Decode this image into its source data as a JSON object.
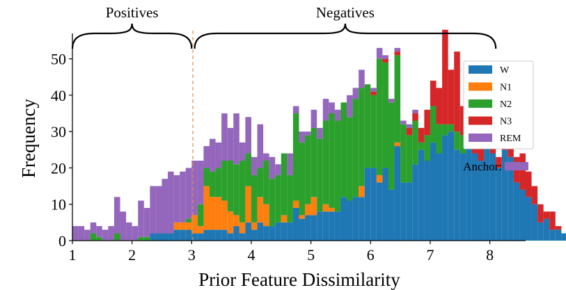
{
  "chart_data": {
    "type": "bar",
    "stacked": true,
    "title": "",
    "xlabel": "Prior Feature Dissimilarity",
    "ylabel": "Frequency",
    "xlim": [
      1.0,
      8.6
    ],
    "ylim": [
      0,
      57
    ],
    "xticks": [
      1,
      2,
      3,
      4,
      5,
      6,
      7,
      8
    ],
    "yticks": [
      0,
      10,
      20,
      30,
      40,
      50
    ],
    "bin_start": 1.05,
    "bin_width": 0.1,
    "threshold": 3.02,
    "series": [
      {
        "name": "W",
        "color": "#1f77b4",
        "values": [
          0,
          0,
          0,
          0,
          0,
          0,
          0,
          0,
          0,
          0,
          0,
          0,
          0,
          2,
          2,
          2,
          2,
          3,
          3,
          3,
          2,
          2,
          3,
          3,
          3,
          3,
          2,
          4,
          2,
          5,
          3,
          5,
          4,
          4,
          5,
          5,
          5,
          9,
          6,
          7,
          7,
          8,
          8,
          8,
          8,
          12,
          11,
          12,
          12,
          20,
          20,
          16,
          20,
          14,
          26,
          16,
          16,
          21,
          25,
          22,
          27,
          24,
          29,
          30,
          25,
          24,
          26,
          24,
          22,
          27,
          24,
          20,
          25,
          23,
          16,
          14,
          12,
          10,
          5,
          6,
          3,
          3,
          2,
          2,
          2,
          1,
          1,
          0,
          0,
          0,
          0,
          0,
          0,
          0,
          0
        ]
      },
      {
        "name": "N1",
        "color": "#ff7f0e",
        "values": [
          0,
          0,
          0,
          0,
          0,
          0,
          0,
          0,
          0,
          0,
          0,
          0,
          0,
          0,
          0,
          0,
          0,
          2,
          2,
          2,
          5,
          2,
          12,
          9,
          9,
          8,
          6,
          3,
          3,
          10,
          2,
          7,
          6,
          0,
          0,
          2,
          0,
          2,
          1,
          3,
          5,
          0,
          2,
          1,
          0,
          0,
          0,
          0,
          3,
          0,
          0,
          2,
          0,
          0,
          1,
          0,
          0,
          0,
          0,
          0,
          0,
          0,
          0,
          0,
          0,
          0,
          0,
          0,
          0,
          0,
          0,
          0,
          0,
          0,
          0,
          0,
          0,
          0,
          0,
          0,
          0,
          0,
          0,
          0,
          0,
          0,
          0,
          0,
          0,
          0,
          0,
          0,
          0,
          0,
          0
        ]
      },
      {
        "name": "N2",
        "color": "#2ca02c",
        "values": [
          0,
          0,
          0,
          2,
          1,
          0,
          0,
          2,
          0,
          0,
          0,
          1,
          1,
          0,
          0,
          0,
          0,
          0,
          0,
          1,
          0,
          6,
          5,
          7,
          8,
          11,
          14,
          14,
          17,
          9,
          13,
          8,
          12,
          13,
          13,
          17,
          13,
          24,
          20,
          19,
          19,
          20,
          23,
          26,
          25,
          26,
          23,
          27,
          27,
          23,
          20,
          32,
          29,
          24,
          24,
          16,
          13,
          12,
          2,
          7,
          10,
          8,
          3,
          2,
          5,
          5,
          0,
          0,
          0,
          1,
          0,
          0,
          0,
          0,
          0,
          0,
          0,
          0,
          0,
          0,
          0,
          0,
          0,
          0,
          0,
          0,
          0,
          0,
          0,
          0,
          0,
          0,
          0,
          0,
          0
        ]
      },
      {
        "name": "N3",
        "color": "#d62728",
        "values": [
          0,
          0,
          0,
          0,
          0,
          0,
          0,
          0,
          0,
          0,
          0,
          0,
          0,
          0,
          0,
          0,
          0,
          0,
          0,
          0,
          0,
          0,
          0,
          0,
          0,
          0,
          0,
          0,
          0,
          0,
          0,
          0,
          0,
          0,
          0,
          0,
          0,
          0,
          0,
          0,
          0,
          0,
          0,
          0,
          0,
          0,
          0,
          0,
          0,
          0,
          1,
          0,
          1,
          0,
          1,
          0,
          2,
          2,
          4,
          7,
          7,
          10,
          26,
          15,
          22,
          8,
          21,
          9,
          12,
          16,
          24,
          3,
          10,
          6,
          7,
          10,
          7,
          5,
          5,
          2,
          5,
          1,
          0,
          0,
          0,
          0,
          1,
          0,
          2,
          1,
          1,
          3,
          2,
          0,
          0
        ]
      },
      {
        "name": "REM",
        "color": "#9467bd",
        "values": [
          4,
          4,
          3,
          3,
          3,
          3,
          4,
          10,
          8,
          5,
          4,
          10,
          8,
          13,
          13,
          15,
          17,
          13,
          14,
          14,
          15,
          12,
          6,
          9,
          7,
          13,
          9,
          14,
          5,
          10,
          5,
          12,
          2,
          6,
          3,
          0,
          6,
          2,
          3,
          1,
          5,
          3,
          6,
          3,
          3,
          0,
          6,
          3,
          5,
          0,
          1,
          3,
          1,
          1,
          1,
          1,
          1,
          1,
          0,
          0,
          0,
          0,
          0,
          0,
          0,
          0,
          0,
          0,
          0,
          0,
          0,
          0,
          0,
          0,
          0,
          0,
          0,
          0,
          0,
          0,
          0,
          0,
          0,
          0,
          0,
          0,
          0,
          0,
          0,
          0,
          0,
          0,
          0,
          0,
          0
        ]
      }
    ],
    "brackets": [
      {
        "label": "Positives",
        "from": 1.0,
        "to": 3.0
      },
      {
        "label": "Negatives",
        "from": 3.05,
        "to": 8.1
      }
    ],
    "legend": {
      "placement": "right"
    },
    "annotation": {
      "label": "Anchor:",
      "color": "#9467bd"
    }
  }
}
